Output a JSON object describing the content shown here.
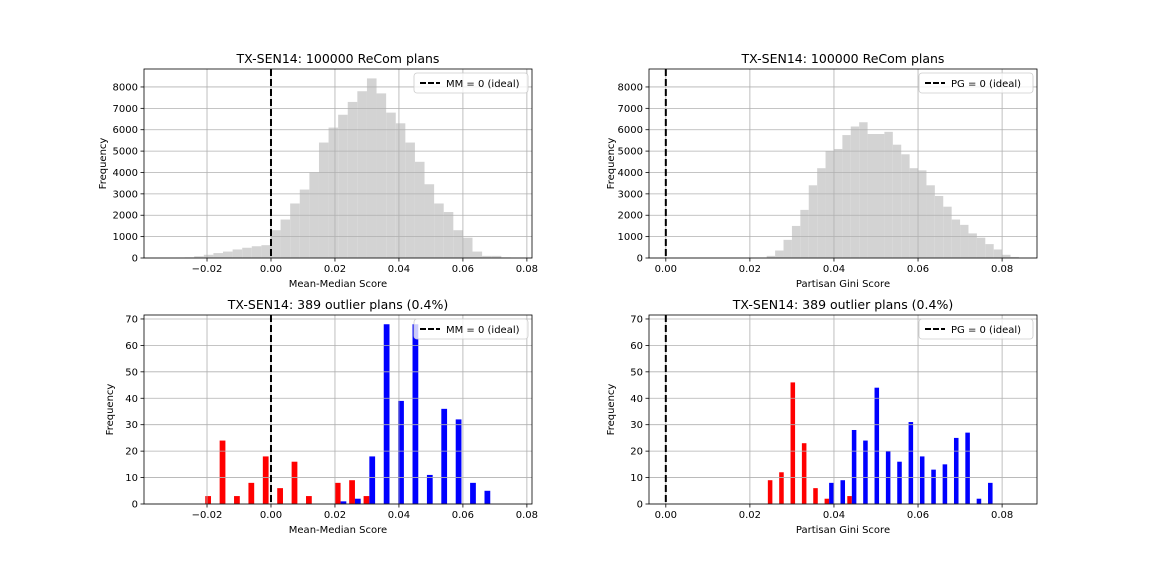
{
  "chart_data": [
    {
      "type": "histogram",
      "title": "TX-SEN14: 100000 ReCom plans",
      "xlabel": "Mean-Median Score",
      "ylabel": "Frequency",
      "bins": [
        -0.03,
        -0.027,
        -0.024,
        -0.021,
        -0.018,
        -0.015,
        -0.012,
        -0.009,
        -0.006,
        -0.003,
        0,
        0.003,
        0.006,
        0.009,
        0.012,
        0.015,
        0.018,
        0.021,
        0.024,
        0.027,
        0.03,
        0.033,
        0.036,
        0.039,
        0.042,
        0.045,
        0.048,
        0.051,
        0.054,
        0.057,
        0.06,
        0.063,
        0.066,
        0.069,
        0.072,
        0.075,
        0.078
      ],
      "values": [
        10,
        30,
        80,
        150,
        230,
        300,
        400,
        480,
        550,
        600,
        1300,
        1800,
        2550,
        3200,
        4000,
        5400,
        6100,
        6700,
        7300,
        7800,
        8400,
        7700,
        6800,
        6300,
        5400,
        4500,
        3450,
        2550,
        2150,
        1300,
        950,
        300,
        100,
        100,
        30,
        20
      ],
      "color": "#d3d3d3",
      "xlim": [
        -0.0397,
        0.0816
      ],
      "xticks": [
        {
          "value": -0.02,
          "label": "−0.02"
        },
        {
          "value": 0,
          "label": "0.00"
        },
        0.02,
        0.04,
        0.06,
        0.08
      ],
      "ylim": [
        0,
        8840
      ],
      "yticks": [
        0,
        1000,
        2000,
        3000,
        4000,
        5000,
        6000,
        7000,
        8000
      ],
      "grid": true,
      "legend": "upper right",
      "vline": {
        "x": 0,
        "label": "MM = 0 (ideal)",
        "color": "#000000"
      }
    },
    {
      "type": "histogram",
      "title": "TX-SEN14: 100000 ReCom plans",
      "xlabel": "Partisan Gini Score",
      "ylabel": "Frequency",
      "bins": [
        0.024,
        0.026,
        0.028,
        0.03,
        0.032,
        0.034,
        0.036,
        0.038,
        0.04,
        0.042,
        0.044,
        0.046,
        0.048,
        0.05,
        0.052,
        0.054,
        0.056,
        0.058,
        0.06,
        0.062,
        0.064,
        0.066,
        0.068,
        0.07,
        0.072,
        0.074,
        0.076,
        0.078,
        0.08,
        0.082,
        0.084
      ],
      "values": [
        100,
        350,
        850,
        1500,
        2250,
        3400,
        4200,
        5000,
        5100,
        5750,
        6150,
        6350,
        5800,
        5800,
        5900,
        5300,
        4850,
        4200,
        4100,
        3400,
        2900,
        2400,
        1800,
        1550,
        1150,
        950,
        650,
        400,
        150,
        50
      ],
      "color": "#d3d3d3",
      "xlim": [
        -0.004,
        0.0883
      ],
      "xticks": [
        {
          "value": 0,
          "label": "0.00"
        },
        0.02,
        0.04,
        0.06,
        0.08
      ],
      "ylim": [
        0,
        8840
      ],
      "yticks": [
        0,
        1000,
        2000,
        3000,
        4000,
        5000,
        6000,
        7000,
        8000
      ],
      "grid": true,
      "legend": "upper right",
      "vline": {
        "x": 0,
        "label": "PG = 0 (ideal)",
        "color": "#000000"
      }
    },
    {
      "type": "histogram",
      "title": "TX-SEN14: 389 outlier plans (0.4%)",
      "xlabel": "Mean-Median Score",
      "ylabel": "Frequency",
      "bins": [
        -0.021,
        -0.0165,
        -0.012,
        -0.0075,
        -0.003,
        0.0015,
        0.006,
        0.0105,
        0.015,
        0.0195,
        0.024,
        0.0285,
        0.033,
        0.0375,
        0.042,
        0.0465,
        0.051,
        0.0555,
        0.06,
        0.0645,
        0.069
      ],
      "series": [
        {
          "color": "#ff0000",
          "values": [
            3,
            24,
            3,
            8,
            18,
            6,
            16,
            3,
            0,
            8,
            9,
            3,
            0,
            0,
            0,
            0,
            0,
            0,
            0,
            0
          ]
        },
        {
          "color": "#0000ff",
          "values": [
            0,
            0,
            0,
            0,
            0,
            0,
            0,
            0,
            0,
            1,
            2,
            18,
            68,
            39,
            68,
            11,
            36,
            32,
            8,
            5
          ]
        }
      ],
      "xlim": [
        -0.0397,
        0.0816
      ],
      "xticks": [
        {
          "value": -0.02,
          "label": "−0.02"
        },
        {
          "value": 0,
          "label": "0.00"
        },
        0.02,
        0.04,
        0.06,
        0.08
      ],
      "ylim": [
        0,
        71.5
      ],
      "yticks": [
        0,
        10,
        20,
        30,
        40,
        50,
        60,
        70
      ],
      "grid": true,
      "legend": "upper right",
      "vline": {
        "x": 0,
        "label": "MM = 0 (ideal)",
        "color": "#000000"
      }
    },
    {
      "type": "histogram",
      "title": "TX-SEN14: 389 outlier plans (0.4%)",
      "xlabel": "Partisan Gini Score",
      "ylabel": "Frequency",
      "bins": [
        0.024,
        0.0267,
        0.0294,
        0.0321,
        0.0348,
        0.0375,
        0.0402,
        0.0429,
        0.0456,
        0.0483,
        0.051,
        0.0537,
        0.0564,
        0.0591,
        0.0618,
        0.0645,
        0.0672,
        0.0699,
        0.0726,
        0.0753,
        0.078
      ],
      "series": [
        {
          "color": "#ff0000",
          "values": [
            9,
            12,
            46,
            23,
            6,
            2,
            0,
            3,
            0,
            0,
            0,
            0,
            0,
            0,
            0,
            0,
            0,
            0,
            0,
            0
          ]
        },
        {
          "color": "#0000ff",
          "values": [
            0,
            0,
            0,
            0,
            0,
            8,
            9,
            28,
            24,
            44,
            20,
            16,
            31,
            18,
            13,
            15,
            25,
            27,
            2,
            8
          ]
        }
      ],
      "xlim": [
        -0.004,
        0.0883
      ],
      "xticks": [
        {
          "value": 0,
          "label": "0.00"
        },
        0.02,
        0.04,
        0.06,
        0.08
      ],
      "ylim": [
        0,
        71.5
      ],
      "yticks": [
        0,
        10,
        20,
        30,
        40,
        50,
        60,
        70
      ],
      "grid": true,
      "legend": "upper right",
      "vline": {
        "x": 0,
        "label": "PG = 0 (ideal)",
        "color": "#000000"
      }
    }
  ]
}
